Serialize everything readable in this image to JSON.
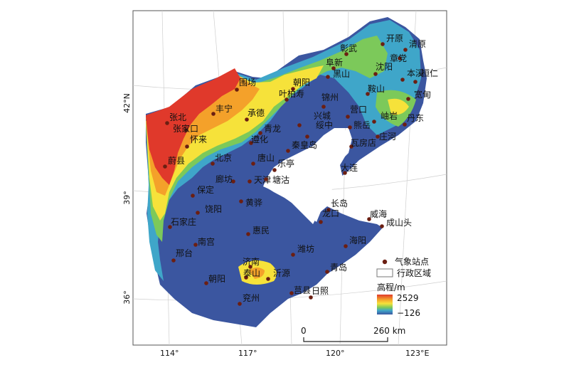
{
  "map": {
    "axis_bottom_labels": [
      "114°",
      "117°",
      "120°",
      "123°E"
    ],
    "axis_left_labels": [
      "42°N",
      "39°",
      "36°"
    ],
    "colors": {
      "high": "#e0392b",
      "upper": "#f4a12a",
      "mid": "#f6e23a",
      "low_mid": "#7cc95a",
      "low": "#3fa6c9",
      "lowest": "#3b56a0",
      "station": "#6b1f12",
      "frame": "#555555"
    }
  },
  "stations": [
    {
      "name": "开原"
    },
    {
      "name": "清原"
    },
    {
      "name": "彰武"
    },
    {
      "name": "章党"
    },
    {
      "name": "阜新"
    },
    {
      "name": "沈阳"
    },
    {
      "name": "本溪"
    },
    {
      "name": "桓仁"
    },
    {
      "name": "黑山"
    },
    {
      "name": "围场"
    },
    {
      "name": "朝阳"
    },
    {
      "name": "鞍山"
    },
    {
      "name": "宽甸"
    },
    {
      "name": "丰宁"
    },
    {
      "name": "叶柏寿"
    },
    {
      "name": "锦州"
    },
    {
      "name": "营口"
    },
    {
      "name": "岫岩"
    },
    {
      "name": "丹东"
    },
    {
      "name": "张北"
    },
    {
      "name": "承德"
    },
    {
      "name": "兴城"
    },
    {
      "name": "熊岳"
    },
    {
      "name": "张家口"
    },
    {
      "name": "青龙"
    },
    {
      "name": "绥中"
    },
    {
      "name": "庄河"
    },
    {
      "name": "怀来"
    },
    {
      "name": "遵化"
    },
    {
      "name": "瓦房店"
    },
    {
      "name": "秦皇岛"
    },
    {
      "name": "北京"
    },
    {
      "name": "唐山"
    },
    {
      "name": "蔚县"
    },
    {
      "name": "乐亭"
    },
    {
      "name": "大连"
    },
    {
      "name": "廊坊"
    },
    {
      "name": "天津"
    },
    {
      "name": "塘沽"
    },
    {
      "name": "保定"
    },
    {
      "name": "长岛"
    },
    {
      "name": "黄骅"
    },
    {
      "name": "龙口"
    },
    {
      "name": "威海"
    },
    {
      "name": "饶阳"
    },
    {
      "name": "成山头"
    },
    {
      "name": "石家庄"
    },
    {
      "name": "惠民"
    },
    {
      "name": "南宫"
    },
    {
      "name": "潍坊"
    },
    {
      "name": "海阳"
    },
    {
      "name": "邢台"
    },
    {
      "name": "济南"
    },
    {
      "name": "泰山"
    },
    {
      "name": "沂源"
    },
    {
      "name": "青岛"
    },
    {
      "name": "朝阳"
    },
    {
      "name": "莒县"
    },
    {
      "name": "日照"
    },
    {
      "name": "兖州"
    }
  ],
  "legend": {
    "station_label": "气象站点",
    "boundary_label": "行政区域",
    "elevation_title": "高程/m",
    "elevation_max": "2529",
    "elevation_min": "−126"
  },
  "scale_bar": {
    "zero_label": "0",
    "end_label": "260 km"
  }
}
